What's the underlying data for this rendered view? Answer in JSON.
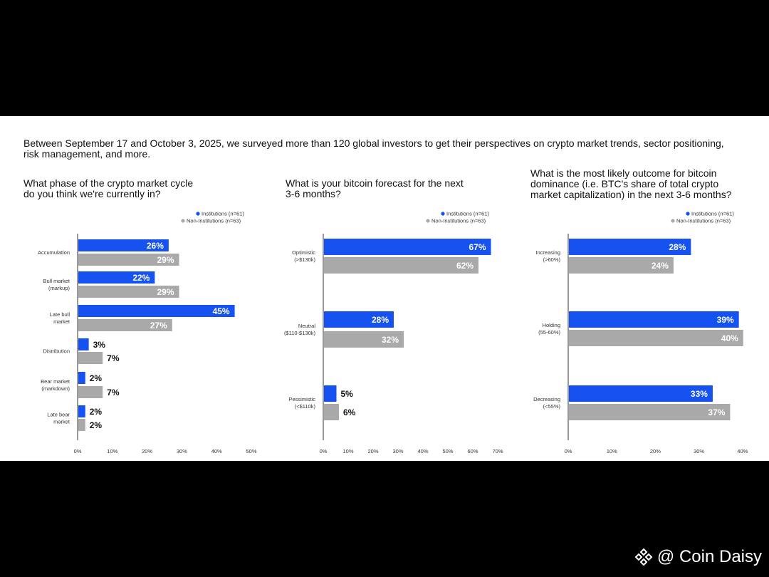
{
  "intro": "Between September 17 and October 3, 2025, we surveyed more than 120 global investors to get their perspectives on crypto market trends, sector positioning, risk management, and more.",
  "colors": {
    "institutions": "#1652f0",
    "non_institutions": "#a9a9a9",
    "axis": "#333333"
  },
  "legend": {
    "institutions": "Institutions (n=61)",
    "non_institutions": "Non-Institutions (n=63)"
  },
  "watermark": {
    "text": "@ Coin Daisy",
    "icon": "diamond-logo-icon"
  },
  "chart_data": [
    {
      "type": "bar",
      "orientation": "horizontal",
      "title": "What phase of the crypto market cycle do you think we're currently in?",
      "title_lines": [
        "What phase of the crypto market cycle",
        "do you think we're currently in?"
      ],
      "categories": [
        [
          "Accumulation"
        ],
        [
          "Bull market",
          "(markup)"
        ],
        [
          "Late bull",
          "market"
        ],
        [
          "Distribution"
        ],
        [
          "Bear market",
          "(markdown)"
        ],
        [
          "Late bear",
          "market"
        ]
      ],
      "series": [
        {
          "name": "Institutions (n=61)",
          "values": [
            26,
            22,
            45,
            3,
            2,
            2
          ]
        },
        {
          "name": "Non-Institutions (n=63)",
          "values": [
            29,
            29,
            27,
            7,
            7,
            2
          ]
        }
      ],
      "ticks": [
        "0%",
        "10%",
        "20%",
        "30%",
        "40%",
        "50%"
      ],
      "xlim": [
        0,
        50
      ],
      "legend_position": "top-right"
    },
    {
      "type": "bar",
      "orientation": "horizontal",
      "title": "What is your bitcoin forecast for the next 3-6 months?",
      "title_lines": [
        "What is your bitcoin forecast for the next",
        "3-6 months?"
      ],
      "categories": [
        [
          "Optimistic",
          "(>$130k)"
        ],
        [
          "Neutral",
          "($110-$130k)"
        ],
        [
          "Pessimistic",
          "(<$110k)"
        ]
      ],
      "series": [
        {
          "name": "Institutions (n=61)",
          "values": [
            67,
            28,
            5
          ]
        },
        {
          "name": "Non-Institutions (n=63)",
          "values": [
            62,
            32,
            6
          ]
        }
      ],
      "ticks": [
        "0%",
        "10%",
        "20%",
        "30%",
        "40%",
        "50%",
        "60%",
        "70%"
      ],
      "xlim": [
        0,
        70
      ],
      "legend_position": "top-right"
    },
    {
      "type": "bar",
      "orientation": "horizontal",
      "title": "What is the most likely outcome for bitcoin dominance (i.e. BTC's share of total crypto market capitalization) in the next 3-6 months?",
      "title_lines": [
        "What is the most likely outcome for bitcoin",
        "dominance (i.e. BTC's share of total crypto",
        "market capitalization) in the next 3-6 months?"
      ],
      "categories": [
        [
          "Increasing",
          "(>60%)"
        ],
        [
          "Holding",
          "(55-60%)"
        ],
        [
          "Decreasing",
          "(<55%)"
        ]
      ],
      "series": [
        {
          "name": "Institutions (n=61)",
          "values": [
            28,
            39,
            33
          ]
        },
        {
          "name": "Non-Institutions (n=63)",
          "values": [
            24,
            40,
            37
          ]
        }
      ],
      "ticks": [
        "0%",
        "10%",
        "20%",
        "30%",
        "40%"
      ],
      "xlim": [
        0,
        40
      ],
      "legend_position": "top-right"
    }
  ]
}
